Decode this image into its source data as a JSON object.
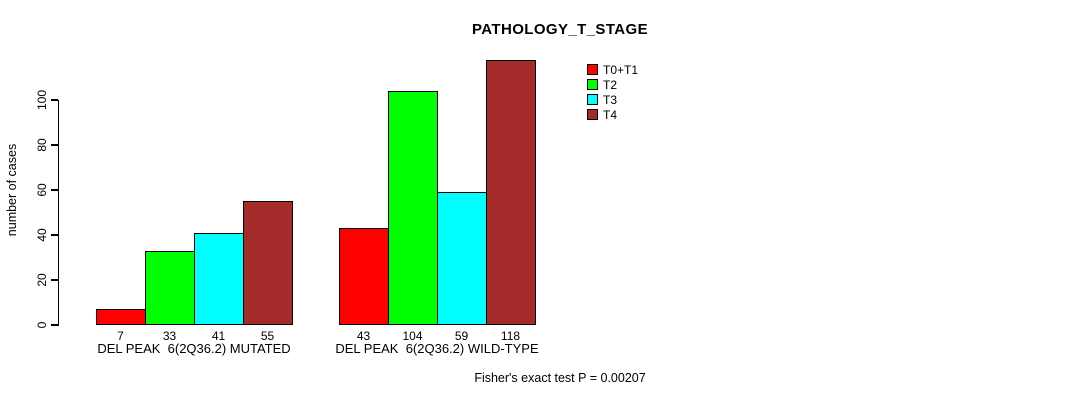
{
  "chart_data": {
    "type": "bar",
    "title": "PATHOLOGY_T_STAGE",
    "ylabel": "number of cases",
    "xlabel": "",
    "ylim": [
      0,
      122
    ],
    "yticks": [
      0,
      20,
      40,
      60,
      80,
      100
    ],
    "grid": false,
    "legend_position": "inside-top-right",
    "value_labels": true,
    "categories": [
      "DEL PEAK  6(2Q36.2) MUTATED",
      "DEL PEAK  6(2Q36.2) WILD-TYPE"
    ],
    "series": [
      {
        "name": "T0+T1",
        "color": "#ff0000",
        "values": [
          7,
          43
        ]
      },
      {
        "name": "T2",
        "color": "#00ff00",
        "values": [
          33,
          104
        ]
      },
      {
        "name": "T3",
        "color": "#00ffff",
        "values": [
          41,
          59
        ]
      },
      {
        "name": "T4",
        "color": "#a52a2a",
        "values": [
          55,
          118
        ]
      }
    ],
    "annotation": "Fisher's exact test P = 0.00207"
  },
  "colors": {
    "background": "#ffffff",
    "axis": "#000000",
    "text": "#000000"
  }
}
